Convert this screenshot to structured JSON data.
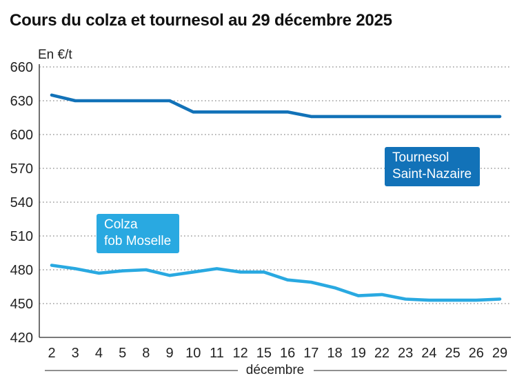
{
  "title": "Cours du colza et tournesol au 29 décembre 2025",
  "y_axis_unit": "En €/t",
  "x_axis_label": "décembre",
  "colors": {
    "tournesol_blue": "#1272B8",
    "colza_blue": "#29A9E1",
    "grid": "#9b9b9b",
    "axis": "#4d4d4d",
    "tick_text": "#222222"
  },
  "series_labels": {
    "tournesol_line1": "Tournesol",
    "tournesol_line2": "Saint-Nazaire",
    "colza_line1": "Colza",
    "colza_line2": "fob Moselle"
  },
  "chart_data": {
    "type": "line",
    "title": "Cours du colza et tournesol au 29 décembre 2025",
    "xlabel": "décembre",
    "ylabel": "En €/t",
    "ylim": [
      420,
      660
    ],
    "yticks": [
      420,
      450,
      480,
      510,
      540,
      570,
      600,
      630,
      660
    ],
    "grid": "horizontal dotted",
    "legend_position": "inline-boxes",
    "categories": [
      2,
      3,
      4,
      5,
      8,
      9,
      10,
      11,
      12,
      15,
      16,
      17,
      18,
      19,
      22,
      23,
      24,
      25,
      26,
      29
    ],
    "series": [
      {
        "name": "Tournesol Saint-Nazaire",
        "color": "#1272B8",
        "values": [
          635,
          630,
          630,
          630,
          630,
          630,
          620,
          620,
          620,
          620,
          620,
          616,
          616,
          616,
          616,
          616,
          616,
          616,
          616,
          616
        ]
      },
      {
        "name": "Colza fob Moselle",
        "color": "#29A9E1",
        "values": [
          484,
          481,
          477,
          479,
          480,
          475,
          478,
          481,
          478,
          478,
          471,
          469,
          464,
          457,
          458,
          454,
          453,
          453,
          453,
          454
        ]
      }
    ]
  }
}
